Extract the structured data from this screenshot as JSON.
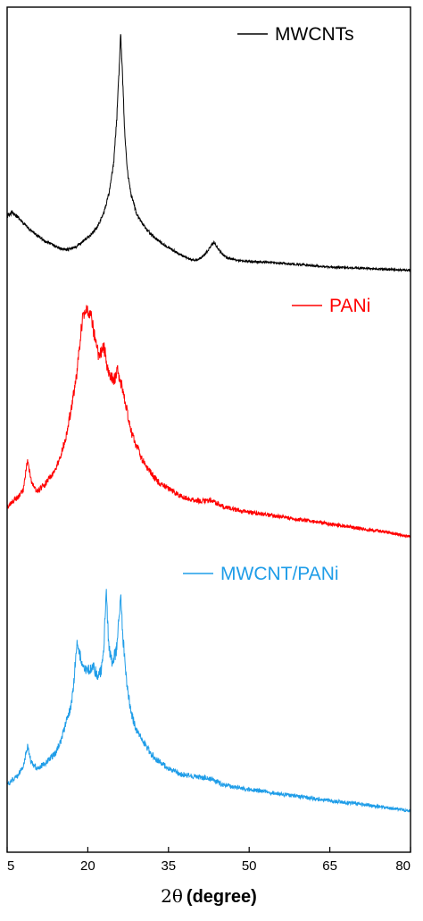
{
  "chart_data": {
    "type": "line",
    "title": "",
    "xlabel_symbol": "2θ",
    "xlabel_unit": "(degree)",
    "ylabel": "",
    "xlim": [
      5,
      80
    ],
    "xticks": [
      5,
      20,
      35,
      50,
      65,
      80
    ],
    "y_axis_shown": false,
    "grid": false,
    "legend_placement": "each series labelled above its trace, right side",
    "y_units": "relative intensity (arbitrary)",
    "series": [
      {
        "name": "MWCNTs",
        "color": "#000000",
        "points": [
          [
            5,
            0.52
          ],
          [
            6,
            0.55
          ],
          [
            7,
            0.51
          ],
          [
            8,
            0.45
          ],
          [
            10,
            0.36
          ],
          [
            12,
            0.29
          ],
          [
            14,
            0.24
          ],
          [
            15,
            0.22
          ],
          [
            16,
            0.21
          ],
          [
            17,
            0.22
          ],
          [
            18,
            0.24
          ],
          [
            19,
            0.28
          ],
          [
            20,
            0.32
          ],
          [
            21,
            0.37
          ],
          [
            22,
            0.44
          ],
          [
            23,
            0.55
          ],
          [
            24,
            0.74
          ],
          [
            24.8,
            1.0
          ],
          [
            25.4,
            1.42
          ],
          [
            25.8,
            1.85
          ],
          [
            26.1,
            2.2
          ],
          [
            26.4,
            1.9
          ],
          [
            26.8,
            1.35
          ],
          [
            27.3,
            0.95
          ],
          [
            28,
            0.72
          ],
          [
            29,
            0.55
          ],
          [
            30,
            0.46
          ],
          [
            31,
            0.39
          ],
          [
            32,
            0.34
          ],
          [
            33,
            0.3
          ],
          [
            34,
            0.26
          ],
          [
            35,
            0.23
          ],
          [
            36,
            0.2
          ],
          [
            37,
            0.17
          ],
          [
            38,
            0.14
          ],
          [
            39,
            0.12
          ],
          [
            40,
            0.11
          ],
          [
            41,
            0.13
          ],
          [
            42,
            0.18
          ],
          [
            43,
            0.25
          ],
          [
            43.5,
            0.28
          ],
          [
            44,
            0.23
          ],
          [
            45,
            0.17
          ],
          [
            46,
            0.13
          ],
          [
            48,
            0.11
          ],
          [
            50,
            0.1
          ],
          [
            55,
            0.09
          ],
          [
            60,
            0.07
          ],
          [
            65,
            0.05
          ],
          [
            70,
            0.04
          ],
          [
            75,
            0.03
          ],
          [
            80,
            0.02
          ]
        ]
      },
      {
        "name": "PANi",
        "color": "#ff0000",
        "points": [
          [
            5,
            0.32
          ],
          [
            6,
            0.38
          ],
          [
            7,
            0.42
          ],
          [
            8,
            0.5
          ],
          [
            8.8,
            0.8
          ],
          [
            9.4,
            0.6
          ],
          [
            10.5,
            0.48
          ],
          [
            12,
            0.55
          ],
          [
            14,
            0.7
          ],
          [
            15,
            0.85
          ],
          [
            16,
            1.05
          ],
          [
            17,
            1.35
          ],
          [
            18,
            1.7
          ],
          [
            18.6,
            2.05
          ],
          [
            19.2,
            2.3
          ],
          [
            19.8,
            2.35
          ],
          [
            20.5,
            2.3
          ],
          [
            21.3,
            2.05
          ],
          [
            22,
            1.85
          ],
          [
            23,
            1.95
          ],
          [
            23.7,
            1.72
          ],
          [
            24.8,
            1.6
          ],
          [
            25.5,
            1.72
          ],
          [
            26.3,
            1.55
          ],
          [
            27.3,
            1.3
          ],
          [
            28,
            1.1
          ],
          [
            29,
            0.95
          ],
          [
            30,
            0.82
          ],
          [
            31,
            0.72
          ],
          [
            32,
            0.65
          ],
          [
            33,
            0.58
          ],
          [
            35,
            0.51
          ],
          [
            37,
            0.44
          ],
          [
            39,
            0.4
          ],
          [
            41,
            0.38
          ],
          [
            43,
            0.39
          ],
          [
            45,
            0.33
          ],
          [
            47,
            0.3
          ],
          [
            50,
            0.27
          ],
          [
            55,
            0.23
          ],
          [
            60,
            0.19
          ],
          [
            65,
            0.15
          ],
          [
            70,
            0.11
          ],
          [
            75,
            0.07
          ],
          [
            80,
            0.02
          ]
        ]
      },
      {
        "name": "MWCNT/PANi",
        "color": "#1f9de8",
        "points": [
          [
            5,
            0.32
          ],
          [
            6,
            0.38
          ],
          [
            7,
            0.42
          ],
          [
            8,
            0.52
          ],
          [
            8.8,
            0.75
          ],
          [
            9.5,
            0.56
          ],
          [
            10.5,
            0.5
          ],
          [
            12,
            0.55
          ],
          [
            14,
            0.66
          ],
          [
            15,
            0.8
          ],
          [
            16,
            1.0
          ],
          [
            17,
            1.2
          ],
          [
            17.5,
            1.5
          ],
          [
            18,
            1.9
          ],
          [
            18.6,
            1.7
          ],
          [
            19.2,
            1.55
          ],
          [
            20,
            1.55
          ],
          [
            21,
            1.6
          ],
          [
            21.8,
            1.5
          ],
          [
            22.5,
            1.55
          ],
          [
            23,
            1.8
          ],
          [
            23.4,
            2.45
          ],
          [
            23.9,
            1.8
          ],
          [
            24.5,
            1.65
          ],
          [
            25.3,
            1.75
          ],
          [
            26.1,
            2.35
          ],
          [
            26.6,
            1.85
          ],
          [
            27.3,
            1.4
          ],
          [
            28,
            1.1
          ],
          [
            29,
            0.92
          ],
          [
            30,
            0.82
          ],
          [
            31,
            0.72
          ],
          [
            32,
            0.64
          ],
          [
            33,
            0.58
          ],
          [
            34,
            0.54
          ],
          [
            35,
            0.5
          ],
          [
            36,
            0.48
          ],
          [
            37,
            0.44
          ],
          [
            39,
            0.42
          ],
          [
            41,
            0.4
          ],
          [
            43,
            0.39
          ],
          [
            45,
            0.32
          ],
          [
            47,
            0.3
          ],
          [
            50,
            0.27
          ],
          [
            55,
            0.23
          ],
          [
            60,
            0.19
          ],
          [
            65,
            0.15
          ],
          [
            70,
            0.12
          ],
          [
            75,
            0.08
          ],
          [
            80,
            0.04
          ]
        ]
      }
    ]
  }
}
